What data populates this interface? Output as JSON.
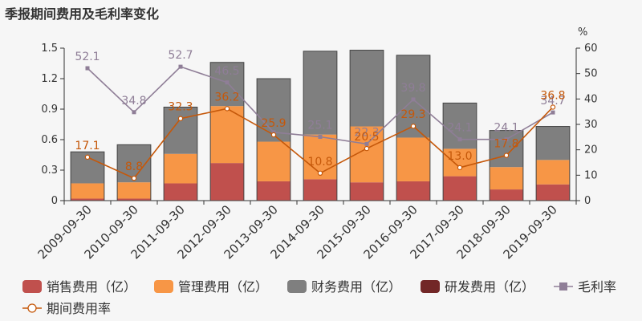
{
  "title": "季报期间费用及毛利率变化",
  "chart_data": {
    "type": "bar",
    "stacked": true,
    "categories": [
      "2009-09-30",
      "2010-09-30",
      "2011-09-30",
      "2012-09-30",
      "2013-09-30",
      "2014-09-30",
      "2015-09-30",
      "2016-09-30",
      "2017-09-30",
      "2018-09-30",
      "2019-09-30"
    ],
    "ylim_left": [
      0,
      1.5
    ],
    "yticks_left": [
      "0",
      "0.3",
      "0.6",
      "0.9",
      "1.2",
      "1.5"
    ],
    "ylim_right": [
      0,
      60
    ],
    "yticks_right": [
      "0",
      "10",
      "20",
      "30",
      "40",
      "50",
      "60"
    ],
    "right_unit": "%",
    "series": [
      {
        "name": "销售费用（亿）",
        "color": "#c0504d",
        "axis": "left",
        "values": [
          0.02,
          0.02,
          0.17,
          0.37,
          0.19,
          0.21,
          0.18,
          0.19,
          0.24,
          0.11,
          0.16
        ]
      },
      {
        "name": "管理费用（亿）",
        "color": "#f79646",
        "axis": "left",
        "values": [
          0.15,
          0.16,
          0.29,
          0.56,
          0.39,
          0.44,
          0.55,
          0.43,
          0.27,
          0.22,
          0.24
        ]
      },
      {
        "name": "财务费用（亿）",
        "color": "#7f7f7f",
        "axis": "left",
        "values": [
          0.31,
          0.37,
          0.46,
          0.43,
          0.62,
          0.82,
          0.75,
          0.81,
          0.45,
          0.36,
          0.33
        ]
      },
      {
        "name": "研发费用（亿）",
        "color": "#722727",
        "axis": "left",
        "values": [
          0,
          0,
          0,
          0,
          0,
          0,
          0,
          0,
          0,
          0,
          0
        ]
      }
    ],
    "lines": [
      {
        "name": "毛利率",
        "color": "#8f7e97",
        "axis": "right",
        "marker": "square",
        "values": [
          52.1,
          34.8,
          52.7,
          46.5,
          26.9,
          25.1,
          22.3,
          39.8,
          24.1,
          24.1,
          34.7
        ],
        "labels": [
          "52.1",
          "34.8",
          "52.7",
          "46.5",
          "",
          "25.1",
          "22.3",
          "39.8",
          "24.1",
          "24.1",
          "34.7"
        ]
      },
      {
        "name": "期间费用率",
        "color": "#c5580a",
        "axis": "right",
        "marker": "circle",
        "values": [
          17.1,
          8.8,
          32.3,
          36.2,
          25.9,
          10.8,
          20.5,
          29.3,
          13.0,
          17.8,
          36.8
        ],
        "labels": [
          "17.1",
          "8.8",
          "32.3",
          "36.2",
          "25.9",
          "10.8",
          "20.5",
          "29.3",
          "13.0",
          "17.8",
          "36.8"
        ]
      }
    ]
  }
}
